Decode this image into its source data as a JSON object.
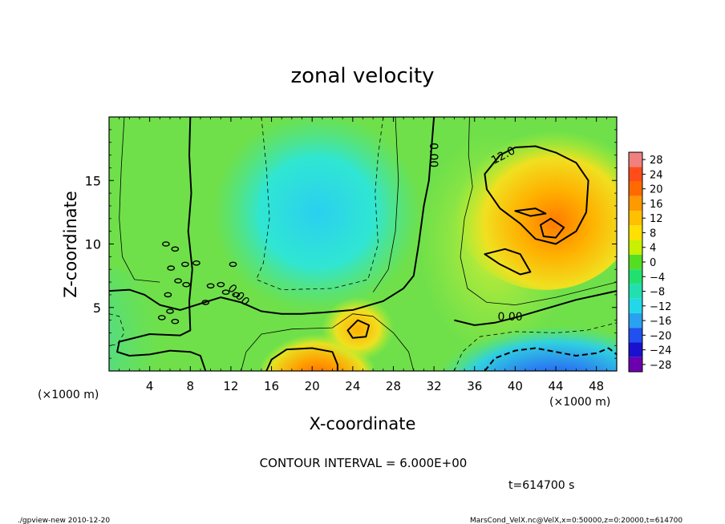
{
  "chart_data": {
    "type": "heatmap",
    "title": "zonal velocity",
    "xlabel": "X-coordinate",
    "ylabel": "Z-coordinate",
    "x_unit_label": "(×1000 m)",
    "y_unit_label": "(×1000 m)",
    "xlim": [
      0,
      50
    ],
    "ylim": [
      0,
      20
    ],
    "x_ticks": [
      4,
      8,
      12,
      16,
      20,
      24,
      28,
      32,
      36,
      40,
      44,
      48
    ],
    "y_ticks": [
      5,
      10,
      15
    ],
    "colorbar": {
      "labels": [
        "28",
        "24",
        "20",
        "16",
        "12",
        "8",
        "4",
        "0",
        "−4",
        "−8",
        "−12",
        "−16",
        "−20",
        "−24",
        "−28"
      ],
      "colors": [
        "#f08080",
        "#ff4d1a",
        "#ff6a00",
        "#ff9900",
        "#ffc000",
        "#ffe000",
        "#c8f000",
        "#55dd22",
        "#22e070",
        "#22dfb0",
        "#22d8e8",
        "#2aa0f0",
        "#2050f0",
        "#1a10d0",
        "#6a00b0"
      ]
    },
    "contour_labels": [
      "0.00",
      "0.00",
      "0.00",
      "12.0"
    ],
    "contour_interval_text": "CONTOUR INTERVAL = 6.000E+00",
    "time_text": "t=614700 s",
    "footer_left": "./gpview-new  2010-12-20",
    "footer_right": "MarsCond_VelX.nc@VelX,x=0:50000,z=0:20000,t=614700",
    "features": [
      {
        "name": "background",
        "value": 2
      },
      {
        "name": "upper-central-jet-min",
        "x": 20.5,
        "z": 11.8,
        "value": -9
      },
      {
        "name": "upper-right-jet-max",
        "x": 43.5,
        "z": 11.0,
        "value": 18
      },
      {
        "name": "lower-left-jet-max",
        "x": 20.5,
        "z": 0.8,
        "value": 18
      },
      {
        "name": "lower-center-max",
        "x": 24.5,
        "z": 3.4,
        "value": 13
      },
      {
        "name": "lower-right-min",
        "x": 42.0,
        "z": 1.2,
        "value": -18
      },
      {
        "name": "left-edge-min",
        "x": 0.5,
        "z": 3.5,
        "value": -7
      }
    ]
  }
}
